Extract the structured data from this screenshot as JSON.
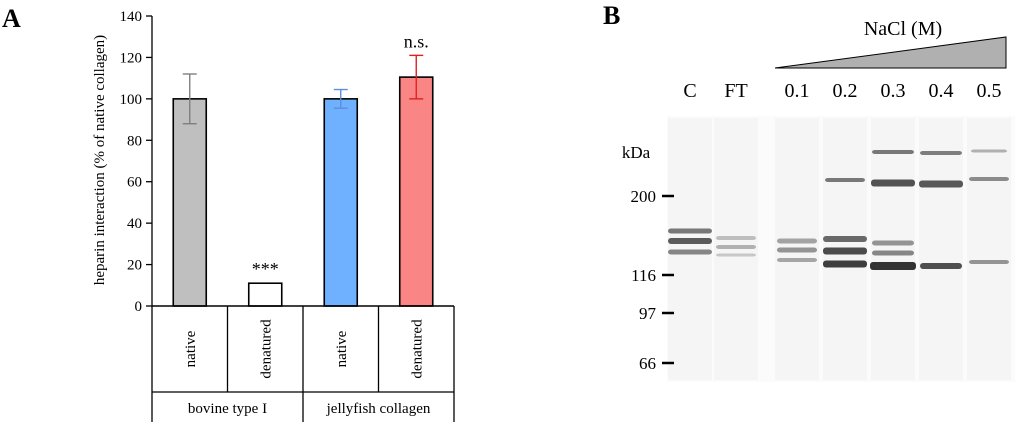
{
  "panel_a": {
    "letter": "A"
  },
  "panel_b": {
    "letter": "B",
    "salt_label": "NaCl (M)",
    "lanes": [
      "C",
      "FT",
      "0.1",
      "0.2",
      "0.3",
      "0.4",
      "0.5"
    ],
    "marker_unit": "kDa",
    "markers": [
      "200",
      "116",
      "97",
      "66"
    ]
  },
  "chart_data": {
    "type": "bar",
    "ylabel": "heparin interaction (% of native collagen)",
    "ylim": [
      0,
      140
    ],
    "yticks": [
      0,
      20,
      40,
      60,
      80,
      100,
      120,
      140
    ],
    "categories": [
      "native",
      "denatured",
      "native",
      "denatured"
    ],
    "groups": [
      {
        "label": "bovine type I",
        "members": [
          0,
          1
        ]
      },
      {
        "label": "jellyfish collagen",
        "members": [
          2,
          3
        ]
      }
    ],
    "values": [
      100,
      11,
      100,
      110.5
    ],
    "errors": [
      12,
      1,
      4.5,
      10.5
    ],
    "bar_fill": [
      "#bfbfbf",
      "#ffffff",
      "#6fb1ff",
      "#f98585"
    ],
    "error_color": [
      "#7f7f7f",
      "#000000",
      "#5b8ee0",
      "#e02020"
    ],
    "annotations": [
      "",
      "***",
      "",
      "n.s."
    ],
    "legend": "none",
    "grid": false
  }
}
